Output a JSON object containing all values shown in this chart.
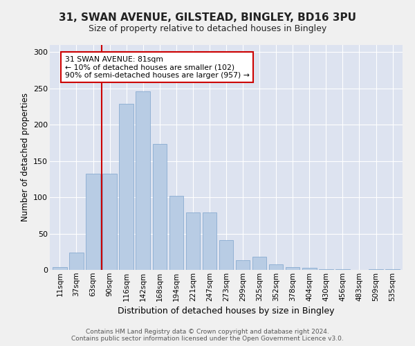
{
  "title1": "31, SWAN AVENUE, GILSTEAD, BINGLEY, BD16 3PU",
  "title2": "Size of property relative to detached houses in Bingley",
  "xlabel": "Distribution of detached houses by size in Bingley",
  "ylabel": "Number of detached properties",
  "bg_color": "#dde3f0",
  "bar_color": "#b8cce4",
  "bar_edge_color": "#7ba3cc",
  "categories": [
    "11sqm",
    "37sqm",
    "63sqm",
    "90sqm",
    "116sqm",
    "142sqm",
    "168sqm",
    "194sqm",
    "221sqm",
    "247sqm",
    "273sqm",
    "299sqm",
    "325sqm",
    "352sqm",
    "378sqm",
    "404sqm",
    "430sqm",
    "456sqm",
    "483sqm",
    "509sqm",
    "535sqm"
  ],
  "values": [
    4,
    24,
    133,
    133,
    229,
    246,
    174,
    102,
    79,
    79,
    41,
    13,
    18,
    8,
    4,
    3,
    1,
    1,
    0,
    1,
    1
  ],
  "annotation_text": "31 SWAN AVENUE: 81sqm\n← 10% of detached houses are smaller (102)\n90% of semi-detached houses are larger (957) →",
  "annotation_box_color": "#ffffff",
  "annotation_box_edge_color": "#cc0000",
  "vline_color": "#cc0000",
  "footer1": "Contains HM Land Registry data © Crown copyright and database right 2024.",
  "footer2": "Contains public sector information licensed under the Open Government Licence v3.0.",
  "ylim": [
    0,
    310
  ],
  "yticks": [
    0,
    50,
    100,
    150,
    200,
    250,
    300
  ],
  "fig_bg": "#f0f0f0",
  "title1_fontsize": 11,
  "title2_fontsize": 9
}
